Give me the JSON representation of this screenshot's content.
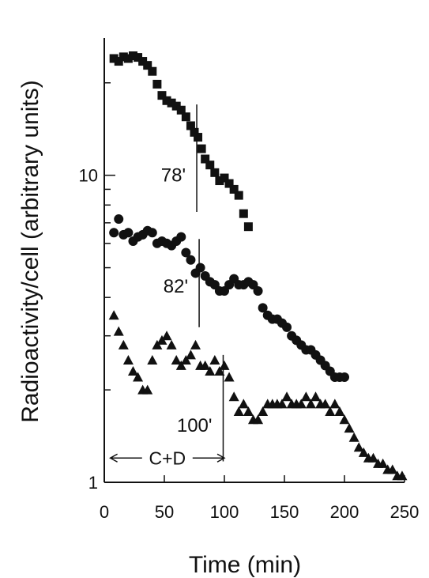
{
  "chart_data": {
    "type": "scatter",
    "title": "",
    "xlabel": "Time (min)",
    "ylabel": "Radioactivity/cell (arbitrary units)",
    "xlim": [
      0,
      250
    ],
    "ylim": [
      1,
      28
    ],
    "y_scale": "log",
    "x_ticks": [
      0,
      50,
      100,
      150,
      200,
      250
    ],
    "x_tick_labels": [
      "0",
      "50",
      "100",
      "150",
      "200",
      "250"
    ],
    "y_tick_labels": [
      {
        "value": 1,
        "label": "1"
      },
      {
        "value": 10,
        "label": "10"
      }
    ],
    "grid": false,
    "series": [
      {
        "marker": "square",
        "x": [
          8,
          12,
          16,
          20,
          24,
          28,
          32,
          36,
          40,
          44,
          48,
          52,
          56,
          60,
          64,
          68,
          72,
          75,
          78,
          81,
          84,
          88,
          92,
          96,
          100,
          104,
          108,
          112,
          116,
          120
        ],
        "y": [
          24,
          23.5,
          24.3,
          24,
          24.5,
          24.2,
          23.5,
          22.8,
          21.8,
          19.8,
          18.2,
          17.5,
          17.2,
          16.8,
          16.3,
          15.5,
          14.5,
          13.8,
          13.3,
          12.2,
          11.3,
          10.8,
          10.2,
          9.6,
          9.8,
          9.4,
          9.0,
          8.6,
          7.5,
          6.8
        ]
      },
      {
        "marker": "circle",
        "x": [
          8,
          12,
          16,
          20,
          24,
          28,
          32,
          36,
          40,
          44,
          48,
          52,
          56,
          60,
          64,
          68,
          72,
          76,
          80,
          84,
          88,
          92,
          96,
          100,
          104,
          108,
          112,
          116,
          120,
          124,
          128,
          132,
          136,
          140,
          144,
          148,
          152,
          156,
          160,
          164,
          168,
          172,
          176,
          180,
          184,
          188,
          192,
          196,
          200
        ],
        "y": [
          6.5,
          7.2,
          6.4,
          6.5,
          6.1,
          6.3,
          6.4,
          6.6,
          6.5,
          6.0,
          6.1,
          6.0,
          5.9,
          6.1,
          6.3,
          5.6,
          5.3,
          4.8,
          5.0,
          4.7,
          4.5,
          4.4,
          4.2,
          4.2,
          4.4,
          4.6,
          4.4,
          4.4,
          4.5,
          4.4,
          4.2,
          3.7,
          3.5,
          3.4,
          3.4,
          3.3,
          3.2,
          3.0,
          2.9,
          2.8,
          2.7,
          2.7,
          2.6,
          2.5,
          2.4,
          2.3,
          2.2,
          2.2,
          2.2
        ]
      },
      {
        "marker": "triangle",
        "x": [
          8,
          12,
          16,
          20,
          24,
          28,
          32,
          36,
          40,
          44,
          48,
          52,
          56,
          60,
          64,
          68,
          72,
          76,
          80,
          84,
          88,
          92,
          96,
          100,
          104,
          108,
          112,
          116,
          120,
          124,
          128,
          132,
          136,
          140,
          144,
          148,
          152,
          156,
          160,
          164,
          168,
          172,
          176,
          180,
          184,
          188,
          192,
          196,
          200,
          204,
          208,
          212,
          216,
          220,
          224,
          228,
          232,
          236,
          240,
          244,
          248
        ],
        "y": [
          3.5,
          3.1,
          2.8,
          2.5,
          2.3,
          2.2,
          2.0,
          2.0,
          2.5,
          2.8,
          2.9,
          3.0,
          2.8,
          2.5,
          2.4,
          2.5,
          2.6,
          2.8,
          2.4,
          2.4,
          2.3,
          2.5,
          2.3,
          2.4,
          2.2,
          1.9,
          1.7,
          1.8,
          1.7,
          1.6,
          1.6,
          1.7,
          1.8,
          1.8,
          1.8,
          1.8,
          1.9,
          1.8,
          1.8,
          1.8,
          1.9,
          1.8,
          1.9,
          1.8,
          1.8,
          1.7,
          1.8,
          1.7,
          1.6,
          1.5,
          1.4,
          1.3,
          1.25,
          1.2,
          1.2,
          1.15,
          1.15,
          1.1,
          1.1,
          1.05,
          1.05
        ]
      }
    ],
    "annotations": [
      {
        "text": "78'",
        "x": 77
      },
      {
        "text": "82'",
        "x": 79
      },
      {
        "text": "100'",
        "x": 99
      },
      {
        "text": "C+D",
        "x_start": 5,
        "x_end": 100
      }
    ]
  }
}
